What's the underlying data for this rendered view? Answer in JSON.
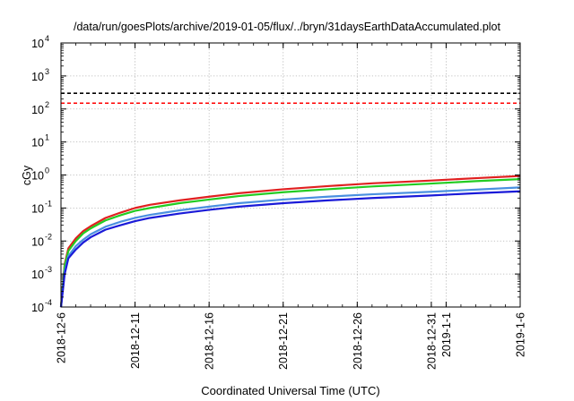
{
  "chart_data": {
    "type": "line",
    "title": "/data/run/goesPlots/archive/2019-01-05/flux/../bryn/31daysEarthDataAccumulated.plot",
    "xlabel": "Coordinated Universal Time (UTC)",
    "ylabel": "cGy",
    "y_scale": "log",
    "ylim": [
      0.0001,
      10000
    ],
    "xlim": [
      "2018-12-06",
      "2019-01-06"
    ],
    "grid": true,
    "x_ticks": [
      {
        "date": "2018-12-06",
        "label": "2018-12-6"
      },
      {
        "date": "2018-12-11",
        "label": "2018-12-11"
      },
      {
        "date": "2018-12-16",
        "label": "2018-12-16"
      },
      {
        "date": "2018-12-21",
        "label": "2018-12-21"
      },
      {
        "date": "2018-12-26",
        "label": "2018-12-26"
      },
      {
        "date": "2018-12-31",
        "label": "2018-12-31"
      },
      {
        "date": "2019-01-01",
        "label": "2019-1-1"
      },
      {
        "date": "2019-01-06",
        "label": "2019-1-6"
      }
    ],
    "y_ticks": [
      {
        "value": 0.0001,
        "base": "10",
        "exp": "-4"
      },
      {
        "value": 0.001,
        "base": "10",
        "exp": "-3"
      },
      {
        "value": 0.01,
        "base": "10",
        "exp": "-2"
      },
      {
        "value": 0.1,
        "base": "10",
        "exp": "-1"
      },
      {
        "value": 1,
        "base": "10",
        "exp": "0"
      },
      {
        "value": 10,
        "base": "10",
        "exp": "1"
      },
      {
        "value": 100,
        "base": "10",
        "exp": "2"
      },
      {
        "value": 1000,
        "base": "10",
        "exp": "3"
      },
      {
        "value": 10000,
        "base": "10",
        "exp": "4"
      }
    ],
    "thresholds": [
      {
        "value": 300,
        "color": "#000000",
        "style": "dashed"
      },
      {
        "value": 150,
        "color": "#ff0000",
        "style": "dashed"
      }
    ],
    "series": [
      {
        "color": "#e02020",
        "points": [
          [
            "2018-12-06",
            0.0001
          ],
          [
            "2018-12-06 06:00",
            0.002
          ],
          [
            "2018-12-06 12:00",
            0.006
          ],
          [
            "2018-12-07",
            0.012
          ],
          [
            "2018-12-07 12:00",
            0.02
          ],
          [
            "2018-12-08",
            0.028
          ],
          [
            "2018-12-09",
            0.05
          ],
          [
            "2018-12-10",
            0.072
          ],
          [
            "2018-12-11",
            0.1
          ],
          [
            "2018-12-12",
            0.125
          ],
          [
            "2018-12-14",
            0.17
          ],
          [
            "2018-12-16",
            0.22
          ],
          [
            "2018-12-18",
            0.28
          ],
          [
            "2018-12-21",
            0.37
          ],
          [
            "2018-12-24",
            0.46
          ],
          [
            "2018-12-27",
            0.56
          ],
          [
            "2018-12-31",
            0.68
          ],
          [
            "2019-01-03",
            0.8
          ],
          [
            "2019-01-06",
            0.93
          ]
        ]
      },
      {
        "color": "#22cc22",
        "points": [
          [
            "2018-12-06",
            0.0001
          ],
          [
            "2018-12-06 06:00",
            0.0018
          ],
          [
            "2018-12-06 12:00",
            0.005
          ],
          [
            "2018-12-07",
            0.01
          ],
          [
            "2018-12-07 12:00",
            0.017
          ],
          [
            "2018-12-08",
            0.024
          ],
          [
            "2018-12-09",
            0.042
          ],
          [
            "2018-12-10",
            0.06
          ],
          [
            "2018-12-11",
            0.082
          ],
          [
            "2018-12-12",
            0.1
          ],
          [
            "2018-12-14",
            0.14
          ],
          [
            "2018-12-16",
            0.18
          ],
          [
            "2018-12-18",
            0.23
          ],
          [
            "2018-12-21",
            0.3
          ],
          [
            "2018-12-24",
            0.37
          ],
          [
            "2018-12-27",
            0.45
          ],
          [
            "2018-12-31",
            0.55
          ],
          [
            "2019-01-03",
            0.65
          ],
          [
            "2019-01-06",
            0.75
          ]
        ]
      },
      {
        "color": "#4a90e0",
        "points": [
          [
            "2018-12-06",
            0.0001
          ],
          [
            "2018-12-06 06:00",
            0.0012
          ],
          [
            "2018-12-06 12:00",
            0.0035
          ],
          [
            "2018-12-07",
            0.007
          ],
          [
            "2018-12-07 12:00",
            0.011
          ],
          [
            "2018-12-08",
            0.016
          ],
          [
            "2018-12-09",
            0.027
          ],
          [
            "2018-12-10",
            0.038
          ],
          [
            "2018-12-11",
            0.05
          ],
          [
            "2018-12-12",
            0.062
          ],
          [
            "2018-12-14",
            0.085
          ],
          [
            "2018-12-16",
            0.11
          ],
          [
            "2018-12-18",
            0.14
          ],
          [
            "2018-12-21",
            0.18
          ],
          [
            "2018-12-24",
            0.22
          ],
          [
            "2018-12-27",
            0.26
          ],
          [
            "2018-12-31",
            0.31
          ],
          [
            "2019-01-03",
            0.36
          ],
          [
            "2019-01-06",
            0.42
          ]
        ]
      },
      {
        "color": "#1a1ad8",
        "points": [
          [
            "2018-12-06",
            0.0001
          ],
          [
            "2018-12-06 06:00",
            0.001
          ],
          [
            "2018-12-06 12:00",
            0.003
          ],
          [
            "2018-12-07",
            0.0055
          ],
          [
            "2018-12-07 12:00",
            0.009
          ],
          [
            "2018-12-08",
            0.013
          ],
          [
            "2018-12-09",
            0.022
          ],
          [
            "2018-12-10",
            0.03
          ],
          [
            "2018-12-11",
            0.04
          ],
          [
            "2018-12-12",
            0.05
          ],
          [
            "2018-12-14",
            0.068
          ],
          [
            "2018-12-16",
            0.088
          ],
          [
            "2018-12-18",
            0.11
          ],
          [
            "2018-12-21",
            0.14
          ],
          [
            "2018-12-24",
            0.17
          ],
          [
            "2018-12-27",
            0.2
          ],
          [
            "2018-12-31",
            0.24
          ],
          [
            "2019-01-03",
            0.28
          ],
          [
            "2019-01-06",
            0.32
          ]
        ]
      }
    ]
  }
}
